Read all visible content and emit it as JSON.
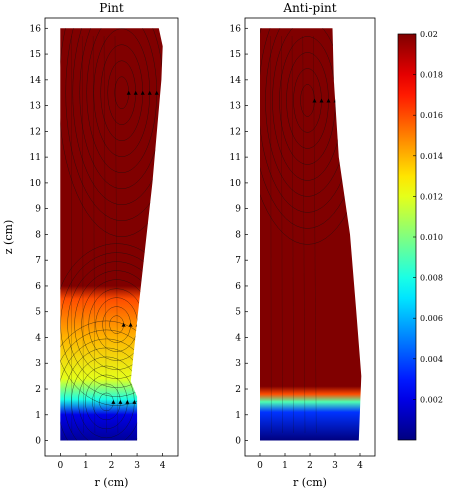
{
  "chart_data": [
    {
      "type": "heatmap",
      "title": "Pint",
      "xlabel": "r (cm)",
      "ylabel": "z (cm)",
      "xlim": [
        -0.6,
        4.6
      ],
      "ylim": [
        -0.6,
        16.4
      ],
      "x_ticks": [
        "0",
        "1",
        "2",
        "3",
        "4"
      ],
      "y_ticks": [
        "0",
        "1",
        "2",
        "3",
        "4",
        "5",
        "6",
        "7",
        "8",
        "9",
        "10",
        "11",
        "12",
        "13",
        "14",
        "15",
        "16"
      ],
      "domain_outline_r": [
        [
          0,
          0
        ],
        [
          3.0,
          0
        ],
        [
          3.0,
          1.7
        ],
        [
          2.75,
          2.3
        ],
        [
          3.15,
          6
        ],
        [
          3.6,
          10
        ],
        [
          3.95,
          14
        ],
        [
          4.0,
          15.3
        ],
        [
          3.85,
          16
        ],
        [
          0,
          16
        ]
      ],
      "color_field": [
        {
          "z": 0.0,
          "value": 0.0005
        },
        {
          "z": 1.0,
          "value": 0.002
        },
        {
          "z": 1.6,
          "value": 0.008
        },
        {
          "z": 2.4,
          "value": 0.012
        },
        {
          "z": 4.0,
          "value": 0.014
        },
        {
          "z": 5.5,
          "value": 0.016
        },
        {
          "z": 6.0,
          "value": 0.02
        },
        {
          "z": 16.0,
          "value": 0.02
        }
      ],
      "vortices": [
        {
          "r": 2.2,
          "z": 4.5
        },
        {
          "r": 1.8,
          "z": 1.5
        },
        {
          "r": 2.4,
          "z": 13.5
        }
      ]
    },
    {
      "type": "heatmap",
      "title": "Anti-pint",
      "xlabel": "r (cm)",
      "ylabel": "",
      "xlim": [
        -0.6,
        4.6
      ],
      "ylim": [
        -0.6,
        16.4
      ],
      "x_ticks": [
        "0",
        "1",
        "2",
        "3",
        "4"
      ],
      "y_ticks": [
        "0",
        "1",
        "2",
        "3",
        "4",
        "5",
        "6",
        "7",
        "8",
        "9",
        "10",
        "11",
        "12",
        "13",
        "14",
        "15",
        "16"
      ],
      "domain_outline_r": [
        [
          0,
          0
        ],
        [
          3.95,
          0
        ],
        [
          4.05,
          2.5
        ],
        [
          3.85,
          5
        ],
        [
          3.6,
          8
        ],
        [
          3.15,
          11
        ],
        [
          2.95,
          14
        ],
        [
          2.9,
          16
        ],
        [
          0,
          16
        ]
      ],
      "color_field": [
        {
          "z": 0.0,
          "value": 0.0
        },
        {
          "z": 1.1,
          "value": 0.0035
        },
        {
          "z": 1.5,
          "value": 0.009
        },
        {
          "z": 1.8,
          "value": 0.016
        },
        {
          "z": 2.1,
          "value": 0.02
        },
        {
          "z": 16.0,
          "value": 0.02
        }
      ],
      "vortices": [
        {
          "r": 1.9,
          "z": 13.2
        }
      ]
    }
  ],
  "colorbar": {
    "min": 0.0,
    "max": 0.02,
    "ticks": [
      "0.002",
      "0.004",
      "0.006",
      "0.008",
      "0.010",
      "0.012",
      "0.014",
      "0.016",
      "0.018",
      "0.02"
    ],
    "colormap": "jet"
  }
}
